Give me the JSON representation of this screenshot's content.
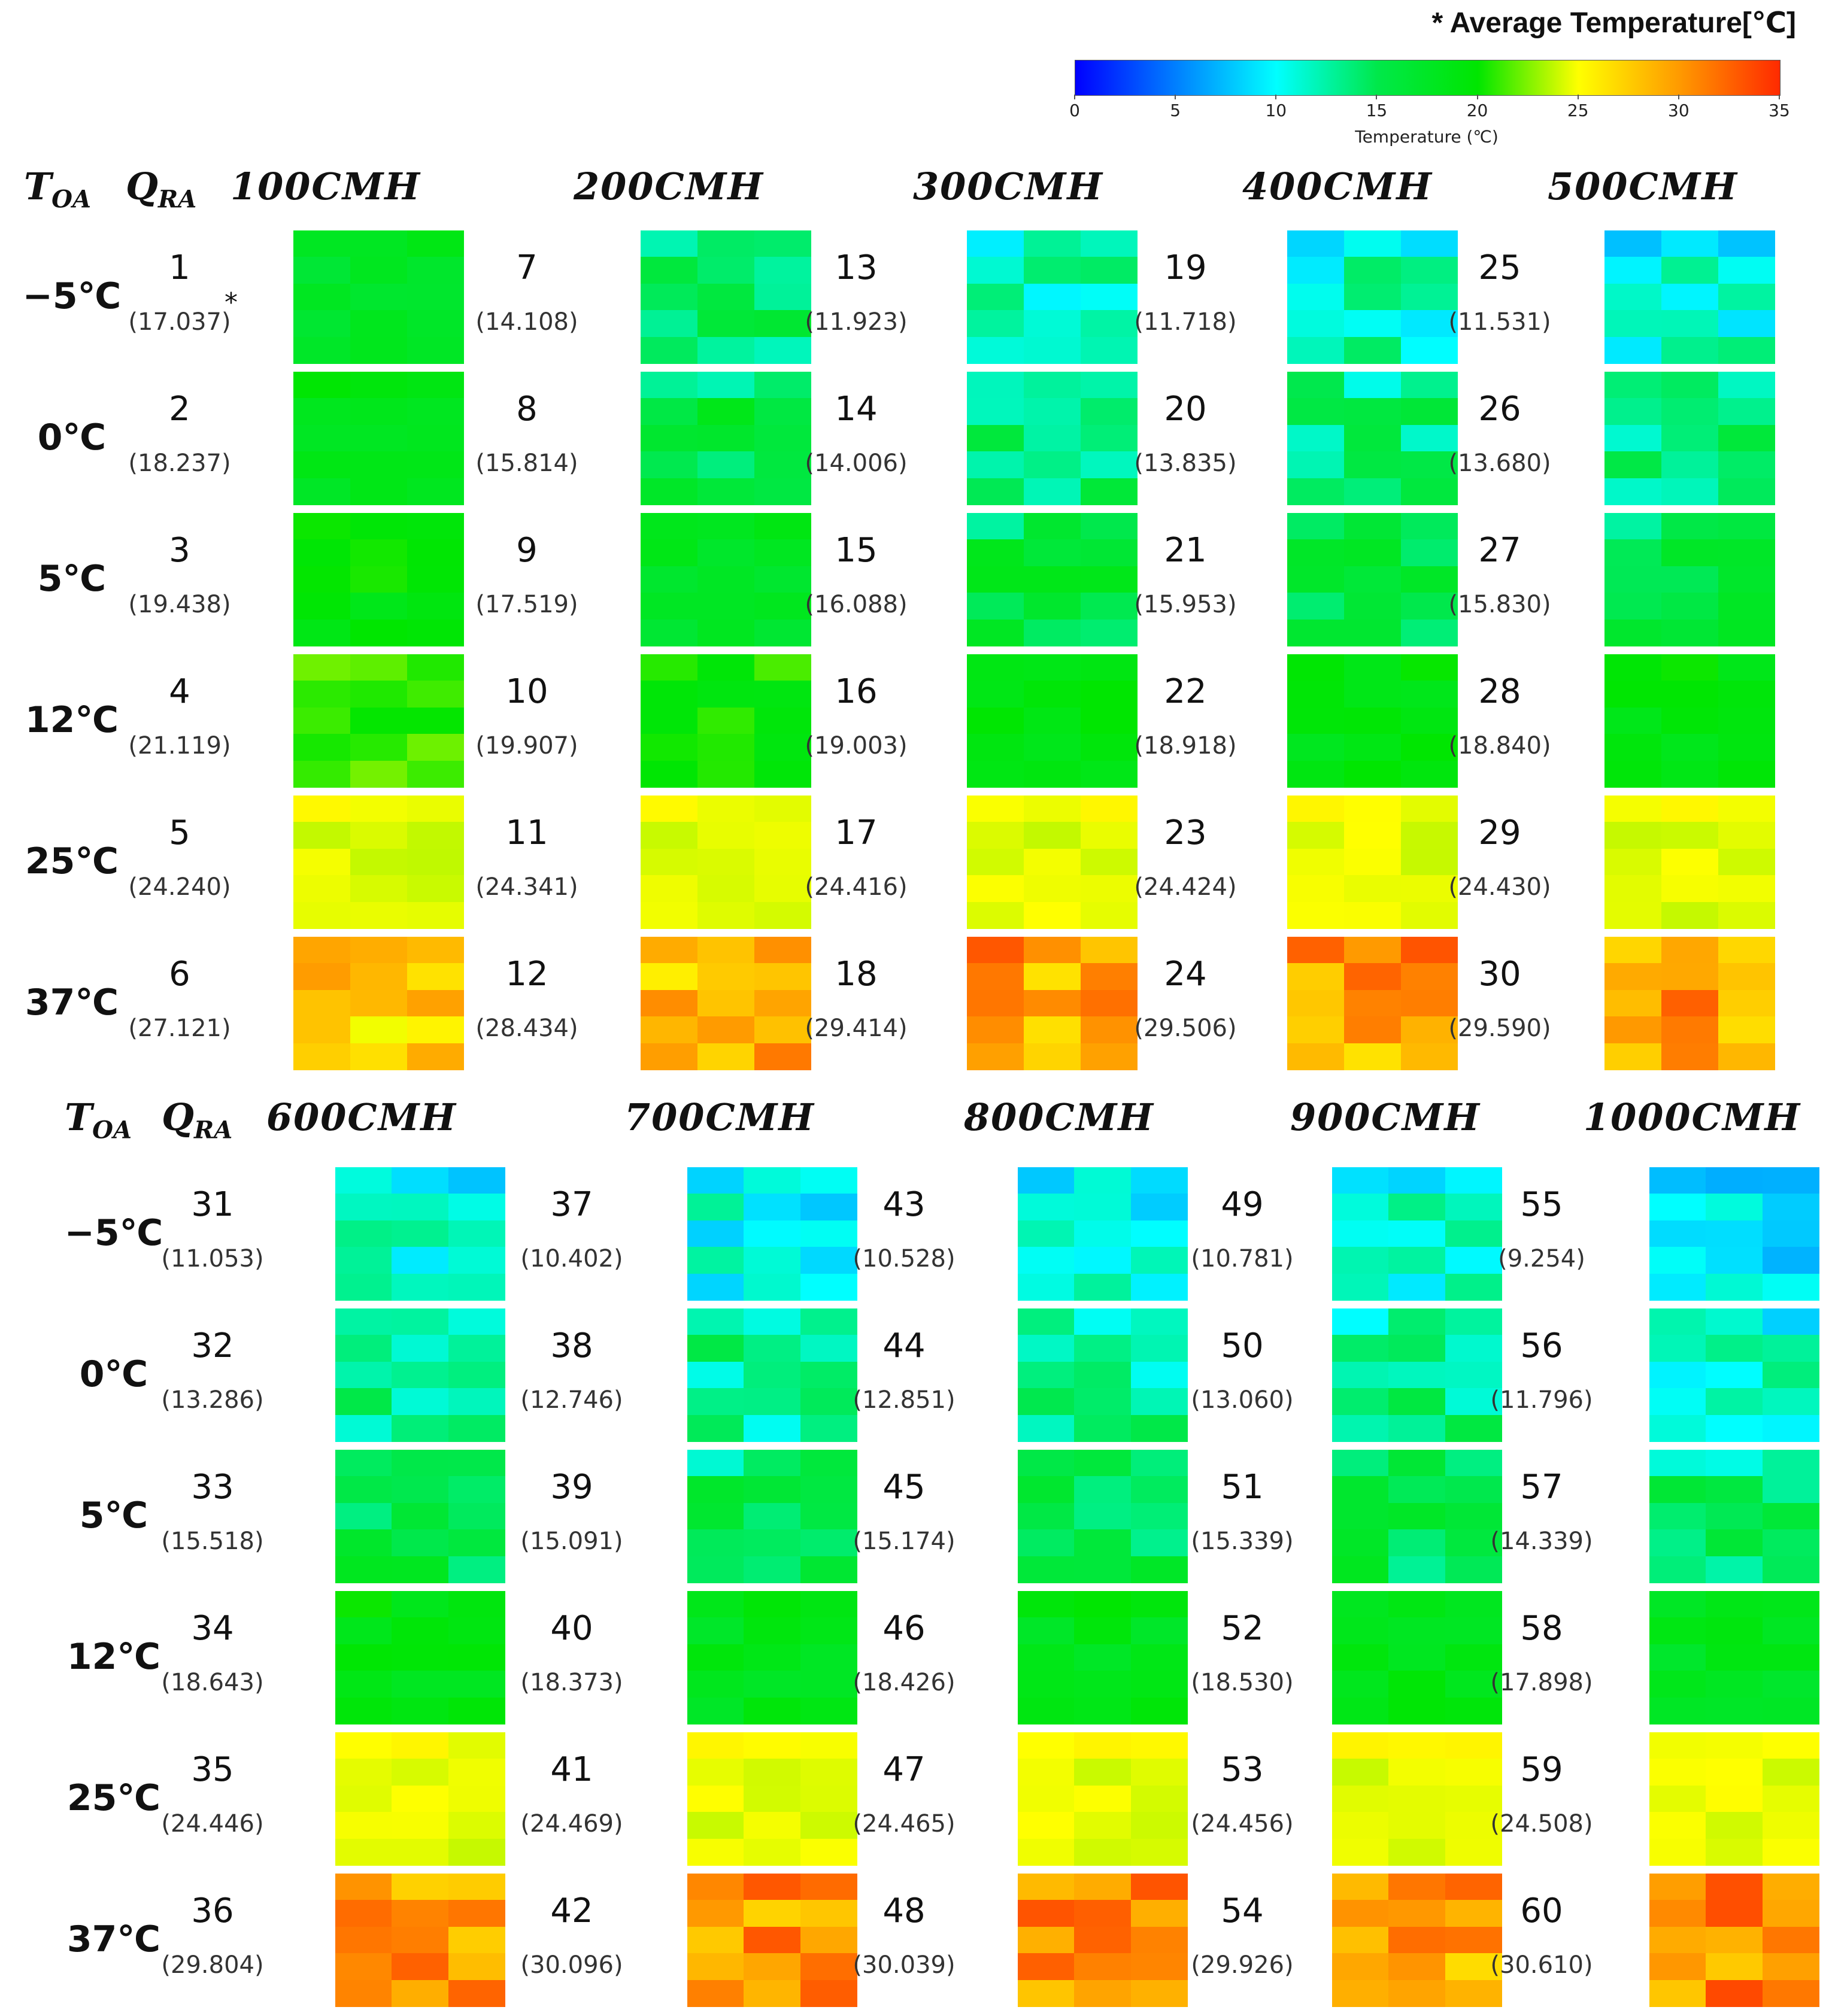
{
  "legend": {
    "title": "* Average Temperature[℃]",
    "colorbar_label": "Temperature (℃)",
    "ticks": [
      "0",
      "5",
      "10",
      "15",
      "20",
      "25",
      "30",
      "35"
    ],
    "range": [
      0,
      35
    ],
    "colors": [
      "#0000ff",
      "#00ffff",
      "#00e84a",
      "#00e600",
      "#ffff00",
      "#ff9a00",
      "#ff2a00"
    ]
  },
  "headers": {
    "toa_letter": "T",
    "toa_sub": "OA",
    "qra_letter": "Q",
    "qra_sub": "RA",
    "asterisk": "*"
  },
  "chart_data": {
    "type": "heatmap",
    "title": "Average Temperature[℃]",
    "row_labels": [
      "−5℃",
      "0℃",
      "5℃",
      "12℃",
      "25℃",
      "37℃"
    ],
    "panels": [
      {
        "flows": [
          "100CMH",
          "200CMH",
          "300CMH",
          "400CMH",
          "500CMH"
        ],
        "cases": [
          [
            {
              "n": "1",
              "avg": "(17.037)",
              "v": 17.037
            },
            {
              "n": "7",
              "avg": "(14.108)",
              "v": 14.108
            },
            {
              "n": "13",
              "avg": "(11.923)",
              "v": 11.923
            },
            {
              "n": "19",
              "avg": "(11.718)",
              "v": 11.718
            },
            {
              "n": "25",
              "avg": "(11.531)",
              "v": 11.531
            }
          ],
          [
            {
              "n": "2",
              "avg": "(18.237)",
              "v": 18.237
            },
            {
              "n": "8",
              "avg": "(15.814)",
              "v": 15.814
            },
            {
              "n": "14",
              "avg": "(14.006)",
              "v": 14.006
            },
            {
              "n": "20",
              "avg": "(13.835)",
              "v": 13.835
            },
            {
              "n": "26",
              "avg": "(13.680)",
              "v": 13.68
            }
          ],
          [
            {
              "n": "3",
              "avg": "(19.438)",
              "v": 19.438
            },
            {
              "n": "9",
              "avg": "(17.519)",
              "v": 17.519
            },
            {
              "n": "15",
              "avg": "(16.088)",
              "v": 16.088
            },
            {
              "n": "21",
              "avg": "(15.953)",
              "v": 15.953
            },
            {
              "n": "27",
              "avg": "(15.830)",
              "v": 15.83
            }
          ],
          [
            {
              "n": "4",
              "avg": "(21.119)",
              "v": 21.119
            },
            {
              "n": "10",
              "avg": "(19.907)",
              "v": 19.907
            },
            {
              "n": "16",
              "avg": "(19.003)",
              "v": 19.003
            },
            {
              "n": "22",
              "avg": "(18.918)",
              "v": 18.918
            },
            {
              "n": "28",
              "avg": "(18.840)",
              "v": 18.84
            }
          ],
          [
            {
              "n": "5",
              "avg": "(24.240)",
              "v": 24.24
            },
            {
              "n": "11",
              "avg": "(24.341)",
              "v": 24.341
            },
            {
              "n": "17",
              "avg": "(24.416)",
              "v": 24.416
            },
            {
              "n": "23",
              "avg": "(24.424)",
              "v": 24.424
            },
            {
              "n": "29",
              "avg": "(24.430)",
              "v": 24.43
            }
          ],
          [
            {
              "n": "6",
              "avg": "(27.121)",
              "v": 27.121
            },
            {
              "n": "12",
              "avg": "(28.434)",
              "v": 28.434
            },
            {
              "n": "18",
              "avg": "(29.414)",
              "v": 29.414
            },
            {
              "n": "24",
              "avg": "(29.506)",
              "v": 29.506
            },
            {
              "n": "30",
              "avg": "(29.590)",
              "v": 29.59
            }
          ]
        ]
      },
      {
        "flows": [
          "600CMH",
          "700CMH",
          "800CMH",
          "900CMH",
          "1000CMH"
        ],
        "cases": [
          [
            {
              "n": "31",
              "avg": "(11.053)",
              "v": 11.053
            },
            {
              "n": "37",
              "avg": "(10.402)",
              "v": 10.402
            },
            {
              "n": "43",
              "avg": "(10.528)",
              "v": 10.528
            },
            {
              "n": "49",
              "avg": "(10.781)",
              "v": 10.781
            },
            {
              "n": "55",
              "avg": "(9.254)",
              "v": 9.254
            }
          ],
          [
            {
              "n": "32",
              "avg": "(13.286)",
              "v": 13.286
            },
            {
              "n": "38",
              "avg": "(12.746)",
              "v": 12.746
            },
            {
              "n": "44",
              "avg": "(12.851)",
              "v": 12.851
            },
            {
              "n": "50",
              "avg": "(13.060)",
              "v": 13.06
            },
            {
              "n": "56",
              "avg": "(11.796)",
              "v": 11.796
            }
          ],
          [
            {
              "n": "33",
              "avg": "(15.518)",
              "v": 15.518
            },
            {
              "n": "39",
              "avg": "(15.091)",
              "v": 15.091
            },
            {
              "n": "45",
              "avg": "(15.174)",
              "v": 15.174
            },
            {
              "n": "51",
              "avg": "(15.339)",
              "v": 15.339
            },
            {
              "n": "57",
              "avg": "(14.339)",
              "v": 14.339
            }
          ],
          [
            {
              "n": "34",
              "avg": "(18.643)",
              "v": 18.643
            },
            {
              "n": "40",
              "avg": "(18.373)",
              "v": 18.373
            },
            {
              "n": "46",
              "avg": "(18.426)",
              "v": 18.426
            },
            {
              "n": "52",
              "avg": "(18.530)",
              "v": 18.53
            },
            {
              "n": "58",
              "avg": "(17.898)",
              "v": 17.898
            }
          ],
          [
            {
              "n": "35",
              "avg": "(24.446)",
              "v": 24.446
            },
            {
              "n": "41",
              "avg": "(24.469)",
              "v": 24.469
            },
            {
              "n": "47",
              "avg": "(24.465)",
              "v": 24.465
            },
            {
              "n": "53",
              "avg": "(24.456)",
              "v": 24.456
            },
            {
              "n": "59",
              "avg": "(24.508)",
              "v": 24.508
            }
          ],
          [
            {
              "n": "36",
              "avg": "(29.804)",
              "v": 29.804
            },
            {
              "n": "42",
              "avg": "(30.096)",
              "v": 30.096
            },
            {
              "n": "48",
              "avg": "(30.039)",
              "v": 30.039
            },
            {
              "n": "54",
              "avg": "(29.926)",
              "v": 29.926
            },
            {
              "n": "60",
              "avg": "(30.610)",
              "v": 30.61
            }
          ]
        ]
      }
    ]
  }
}
